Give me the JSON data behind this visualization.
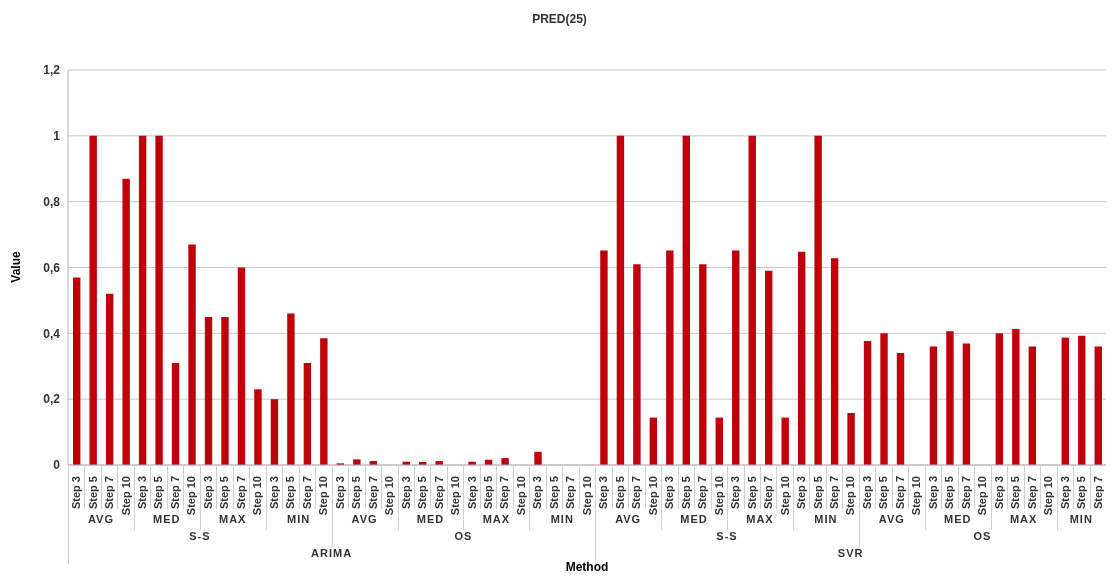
{
  "chart_data": {
    "type": "bar",
    "title": "PRED(25)",
    "xlabel": "Method",
    "ylabel": "Value",
    "categories": [
      "Step 3",
      "Step 5",
      "Step 7",
      "Step 10",
      "Step 3",
      "Step 5",
      "Step 7",
      "Step 10",
      "Step 3",
      "Step 5",
      "Step 7",
      "Step 10",
      "Step 3",
      "Step 5",
      "Step 7",
      "Step 10",
      "Step 3",
      "Step 5",
      "Step 7",
      "Step 10",
      "Step 3",
      "Step 5",
      "Step 7",
      "Step 10",
      "Step 3",
      "Step 5",
      "Step 7",
      "Step 10",
      "Step 3",
      "Step 5",
      "Step 7",
      "Step 10",
      "Step 3",
      "Step 5",
      "Step 7",
      "Step 10",
      "Step 3",
      "Step 5",
      "Step 7",
      "Step 10",
      "Step 3",
      "Step 5",
      "Step 7",
      "Step 10",
      "Step 3",
      "Step 5",
      "Step 7",
      "Step 10",
      "Step 3",
      "Step 5",
      "Step 7",
      "Step 10",
      "Step 3",
      "Step 5",
      "Step 7",
      "Step 10",
      "Step 3",
      "Step 5",
      "Step 7",
      "Step 10",
      "Step 3",
      "Step 5",
      "Step 7"
    ],
    "values": [
      0.57,
      1,
      0.52,
      0.87,
      1,
      1,
      0.31,
      0.67,
      0.45,
      0.45,
      0.6,
      0.23,
      0.2,
      0.46,
      0.31,
      0.385,
      0.005,
      0.017,
      0.012,
      0,
      0.01,
      0.009,
      0.012,
      0,
      0.01,
      0.016,
      0.021,
      0,
      0.04,
      0,
      0,
      0,
      0.652,
      1,
      0.61,
      0.144,
      0.652,
      1,
      0.61,
      0.144,
      0.652,
      1,
      0.59,
      0.144,
      0.648,
      1,
      0.628,
      0.158,
      0.377,
      0.4,
      0.34,
      0,
      0.36,
      0.406,
      0.369,
      0,
      0.4,
      0.413,
      0.36,
      0,
      0.387,
      0.393,
      0.36
    ],
    "color": "#c0000b",
    "ylim": [
      0,
      1.2
    ],
    "yticks": [
      0,
      {
        "value": 0.2,
        "label": "0,2"
      },
      {
        "value": 0.4,
        "label": "0,4"
      },
      {
        "value": 0.6,
        "label": "0,6"
      },
      {
        "value": 0.8,
        "label": "0,8"
      },
      1,
      {
        "value": 1.2,
        "label": "1,2"
      }
    ],
    "grid": "y",
    "legend": false,
    "annotations": [
      "AVG",
      "MED",
      "MAX",
      "MIN",
      "AVG",
      "MED",
      "MAX",
      "MIN",
      "AVG",
      "MED",
      "MAX",
      "MIN",
      "AVG",
      "MED",
      "MAX",
      "MIN",
      "S-S",
      "OS",
      "S-S",
      "OS",
      "ARIMA",
      "SVR"
    ]
  }
}
